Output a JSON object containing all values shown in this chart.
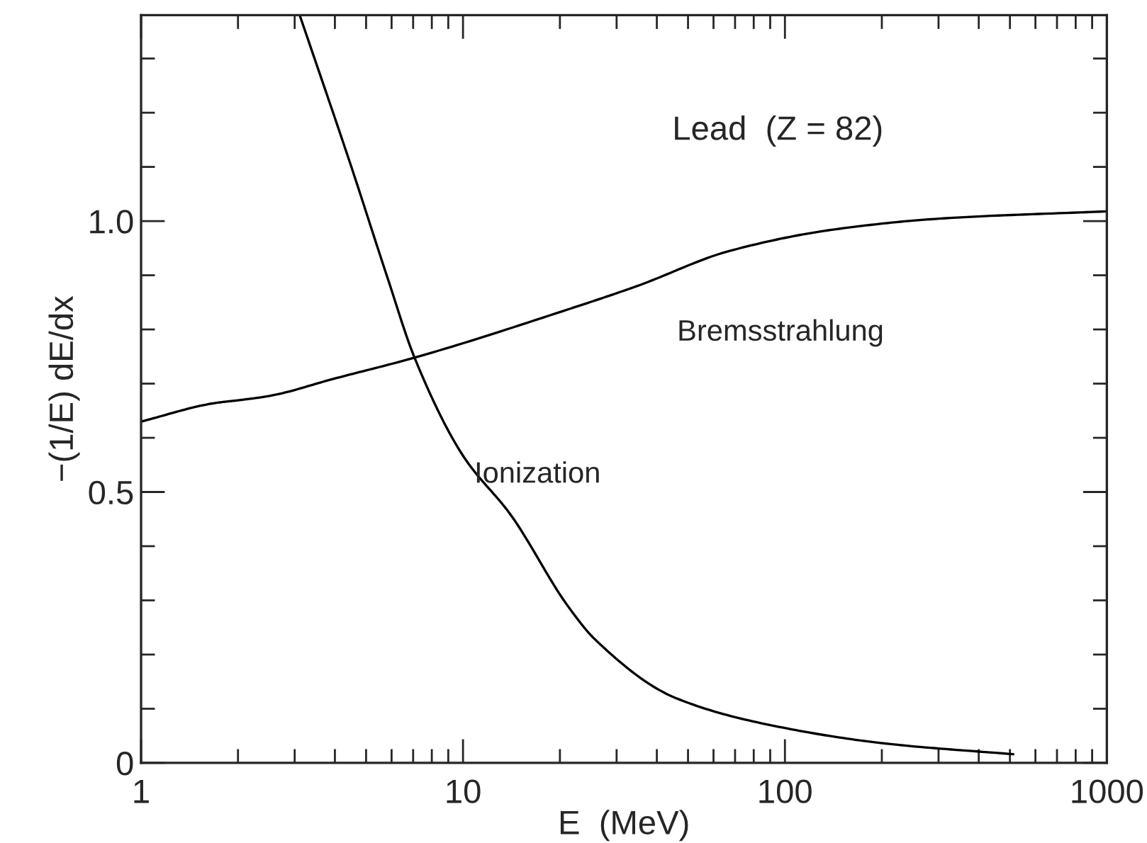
{
  "chart_data": {
    "type": "line",
    "xlabel": "E  (MeV)",
    "ylabel": "−(1/E) dE/dx",
    "log": "x",
    "grid": false,
    "xlim": [
      1,
      1000
    ],
    "ylim": [
      0,
      1.38
    ],
    "xticks": [
      1,
      {
        "value": 2,
        "label": null
      },
      {
        "value": 3,
        "label": null
      },
      {
        "value": 4,
        "label": null
      },
      {
        "value": 5,
        "label": null
      },
      {
        "value": 6,
        "label": null
      },
      {
        "value": 7,
        "label": null
      },
      {
        "value": 8,
        "label": null
      },
      {
        "value": 9,
        "label": null
      },
      10,
      {
        "value": 20,
        "label": null
      },
      {
        "value": 30,
        "label": null
      },
      {
        "value": 40,
        "label": null
      },
      {
        "value": 50,
        "label": null
      },
      {
        "value": 60,
        "label": null
      },
      {
        "value": 70,
        "label": null
      },
      {
        "value": 80,
        "label": null
      },
      {
        "value": 90,
        "label": null
      },
      100,
      {
        "value": 200,
        "label": null
      },
      {
        "value": 300,
        "label": null
      },
      {
        "value": 400,
        "label": null
      },
      {
        "value": 500,
        "label": null
      },
      {
        "value": 600,
        "label": null
      },
      {
        "value": 700,
        "label": null
      },
      {
        "value": 800,
        "label": null
      },
      {
        "value": 900,
        "label": null
      },
      1000
    ],
    "yticks": [
      0,
      {
        "value": 0.1,
        "label": null
      },
      {
        "value": 0.2,
        "label": null
      },
      {
        "value": 0.3,
        "label": null
      },
      {
        "value": 0.4,
        "label": null
      },
      {
        "value": 0.5,
        "label": "0.5"
      },
      {
        "value": 0.6,
        "label": null
      },
      {
        "value": 0.7,
        "label": null
      },
      {
        "value": 0.8,
        "label": null
      },
      {
        "value": 0.9,
        "label": null
      },
      {
        "value": 1.0,
        "label": "1.0"
      },
      {
        "value": 1.1,
        "label": null
      },
      {
        "value": 1.2,
        "label": null
      },
      {
        "value": 1.3,
        "label": null
      }
    ],
    "series": [
      {
        "color": "#000000",
        "x": [
          1,
          1.69,
          2.05,
          2.49,
          3.97,
          7.07,
          21.2,
          34.7,
          67.4,
          144,
          311,
          1000
        ],
        "values": [
          0.63,
          0.664,
          0.67,
          0.677,
          0.709,
          0.748,
          0.837,
          0.88,
          0.945,
          0.985,
          1.005,
          1.018
        ]
      },
      {
        "color": "#000000",
        "x": [
          3.11,
          4.5,
          5.83,
          7.07,
          10,
          14.1,
          21.2,
          25.7,
          45.7,
          98.8,
          211,
          512
        ],
        "values": [
          1.38,
          1.1,
          0.895,
          0.748,
          0.567,
          0.457,
          0.289,
          0.228,
          0.12,
          0.065,
          0.035,
          0.016
        ]
      }
    ],
    "annotations": [
      "Lead  (Z = 82)",
      "Bremsstrahlung",
      "Ionization"
    ]
  }
}
